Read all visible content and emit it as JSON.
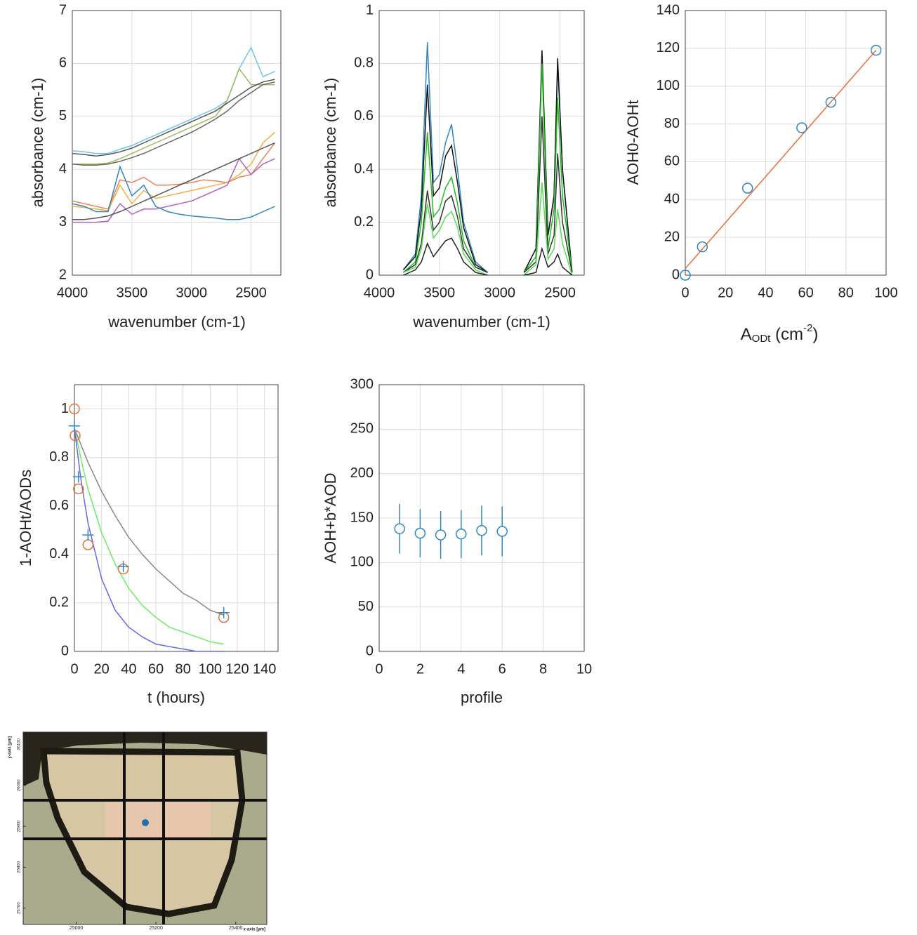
{
  "chart_data": [
    {
      "type": "line",
      "xlabel": "wavenumber (cm-1)",
      "ylabel": "absorbance (cm-1)",
      "xlim": [
        4000,
        2250
      ],
      "ylim": [
        2,
        7
      ],
      "xticks": [
        4000,
        3500,
        3000,
        2500
      ],
      "yticks": [
        2,
        3,
        4,
        5,
        6,
        7
      ],
      "grid": true,
      "x": [
        4000,
        3900,
        3800,
        3700,
        3600,
        3500,
        3400,
        3300,
        3200,
        3100,
        3000,
        2900,
        2800,
        2700,
        2600,
        2500,
        2400,
        2300
      ],
      "series": [
        {
          "color": "#6cc6e8",
          "values": [
            4.35,
            4.33,
            4.3,
            4.3,
            4.38,
            4.45,
            4.55,
            4.65,
            4.75,
            4.85,
            4.95,
            5.05,
            5.15,
            5.3,
            5.9,
            6.3,
            5.75,
            5.85
          ]
        },
        {
          "color": "#9bbb59",
          "values": [
            4.1,
            4.1,
            4.1,
            4.12,
            4.2,
            4.3,
            4.4,
            4.5,
            4.6,
            4.7,
            4.8,
            4.9,
            5.0,
            5.3,
            5.9,
            5.6,
            5.6,
            5.6
          ]
        },
        {
          "color": "#555555",
          "values": [
            4.3,
            4.28,
            4.25,
            4.28,
            4.33,
            4.4,
            4.5,
            4.6,
            4.7,
            4.8,
            4.9,
            5.0,
            5.1,
            5.25,
            5.4,
            5.55,
            5.65,
            5.7
          ]
        },
        {
          "color": "#666666",
          "values": [
            4.1,
            4.08,
            4.08,
            4.1,
            4.15,
            4.22,
            4.3,
            4.4,
            4.5,
            4.6,
            4.7,
            4.82,
            4.95,
            5.1,
            5.3,
            5.45,
            5.6,
            5.65
          ]
        },
        {
          "color": "#e8825a",
          "values": [
            3.4,
            3.35,
            3.3,
            3.25,
            3.8,
            3.75,
            3.85,
            3.7,
            3.7,
            3.72,
            3.75,
            3.8,
            3.78,
            3.75,
            3.85,
            3.9,
            4.2,
            4.5
          ]
        },
        {
          "color": "#f0b040",
          "values": [
            3.3,
            3.28,
            3.25,
            3.22,
            3.7,
            3.35,
            3.6,
            3.45,
            3.5,
            3.55,
            3.6,
            3.65,
            3.7,
            3.75,
            3.9,
            4.1,
            4.5,
            4.7
          ]
        },
        {
          "color": "#b060c0",
          "values": [
            3.0,
            3.0,
            3.0,
            3.02,
            3.35,
            3.15,
            3.25,
            3.25,
            3.3,
            3.35,
            3.4,
            3.5,
            3.6,
            3.7,
            4.2,
            3.9,
            4.1,
            4.2
          ]
        },
        {
          "color": "#2e86c1",
          "values": [
            3.35,
            3.3,
            3.2,
            3.2,
            4.05,
            3.5,
            3.7,
            3.3,
            3.2,
            3.15,
            3.12,
            3.1,
            3.08,
            3.05,
            3.05,
            3.1,
            3.2,
            3.3
          ]
        },
        {
          "color": "#555555",
          "values": [
            3.05,
            3.05,
            3.08,
            3.12,
            3.2,
            3.3,
            3.4,
            3.5,
            3.6,
            3.7,
            3.8,
            3.9,
            4.0,
            4.1,
            4.2,
            4.3,
            4.4,
            4.5
          ]
        }
      ]
    },
    {
      "type": "line",
      "xlabel": "wavenumber (cm-1)",
      "ylabel": "absorbance (cm-1)",
      "xlim": [
        4000,
        2300
      ],
      "ylim": [
        0,
        1
      ],
      "xticks": [
        4000,
        3500,
        3000,
        2500
      ],
      "yticks": [
        0,
        0.2,
        0.4,
        0.6,
        0.8,
        1
      ],
      "grid": true,
      "x": [
        3800,
        3700,
        3650,
        3600,
        3550,
        3500,
        3450,
        3400,
        3350,
        3300,
        3200,
        3100,
        3000,
        2800,
        2700,
        2650,
        2600,
        2550,
        2520,
        2480,
        2400
      ],
      "series": [
        {
          "color": "#2e86c1",
          "values": [
            0.02,
            0.08,
            0.3,
            0.88,
            0.35,
            0.38,
            0.5,
            0.57,
            0.4,
            0.2,
            0.05,
            0.01,
            null,
            0.01,
            0.1,
            0.82,
            0.15,
            0.3,
            0.8,
            0.4,
            0.01
          ]
        },
        {
          "color": "#111111",
          "values": [
            0.02,
            0.07,
            0.25,
            0.72,
            0.3,
            0.33,
            0.45,
            0.49,
            0.35,
            0.18,
            0.04,
            0.01,
            null,
            0.01,
            0.1,
            0.85,
            0.15,
            0.3,
            0.82,
            0.4,
            0.01
          ]
        },
        {
          "color": "#22bb22",
          "values": [
            0.01,
            0.05,
            0.2,
            0.54,
            0.22,
            0.25,
            0.33,
            0.37,
            0.27,
            0.13,
            0.03,
            0.01,
            null,
            0.01,
            0.07,
            0.8,
            0.1,
            0.25,
            0.67,
            0.3,
            0.01
          ]
        },
        {
          "color": "#333333",
          "values": [
            0.01,
            0.04,
            0.12,
            0.32,
            0.17,
            0.2,
            0.28,
            0.3,
            0.22,
            0.1,
            0.03,
            0.01,
            null,
            0.01,
            0.05,
            0.6,
            0.08,
            0.15,
            0.46,
            0.2,
            0.01
          ]
        },
        {
          "color": "#55dd55",
          "values": [
            0.01,
            0.03,
            0.1,
            0.27,
            0.14,
            0.17,
            0.22,
            0.24,
            0.18,
            0.08,
            0.02,
            0.0,
            null,
            0.0,
            0.04,
            0.35,
            0.06,
            0.1,
            0.25,
            0.12,
            0.0
          ]
        },
        {
          "color": "#222222",
          "values": [
            0.0,
            0.02,
            0.05,
            0.12,
            0.07,
            0.1,
            0.13,
            0.14,
            0.1,
            0.05,
            0.01,
            0.0,
            null,
            0.0,
            0.01,
            0.1,
            0.03,
            0.05,
            0.08,
            0.03,
            0.0
          ]
        }
      ]
    },
    {
      "type": "scatter",
      "xlabel_parts": [
        "A",
        "ODt",
        " (cm",
        "-2",
        ")"
      ],
      "ylabel": "AOH0-AOHt",
      "xlim": [
        0,
        100
      ],
      "ylim": [
        0,
        140
      ],
      "xticks": [
        0,
        20,
        40,
        60,
        80,
        100
      ],
      "yticks": [
        0,
        20,
        40,
        60,
        80,
        100,
        120,
        140
      ],
      "grid": true,
      "series": [
        {
          "type": "line",
          "color": "#e8703a",
          "x": [
            0,
            95
          ],
          "values": [
            3.5,
            119
          ]
        },
        {
          "type": "markers",
          "marker": "circle",
          "color": "#2e86c1",
          "x": [
            0,
            8.5,
            31,
            58,
            72.5,
            95
          ],
          "values": [
            0,
            15,
            46,
            78,
            91.5,
            119
          ]
        }
      ]
    },
    {
      "type": "scatter",
      "xlabel": "t (hours)",
      "ylabel": "1-AOHt/AODs",
      "xlim": [
        0,
        150
      ],
      "ylim": [
        0,
        1.1
      ],
      "xticks": [
        0,
        20,
        40,
        60,
        80,
        100,
        120,
        140
      ],
      "yticks": [
        0,
        0.2,
        0.4,
        0.6,
        0.8,
        1
      ],
      "grid": true,
      "series": [
        {
          "type": "line",
          "color": "#888888",
          "x": [
            0,
            5,
            10,
            20,
            30,
            40,
            50,
            60,
            70,
            80,
            90,
            100,
            110
          ],
          "values": [
            0.92,
            0.85,
            0.78,
            0.66,
            0.56,
            0.47,
            0.4,
            0.34,
            0.29,
            0.24,
            0.21,
            0.17,
            0.15
          ]
        },
        {
          "type": "line",
          "color": "#66ee66",
          "x": [
            0,
            5,
            10,
            20,
            30,
            40,
            50,
            60,
            70,
            80,
            90,
            100,
            110
          ],
          "values": [
            0.92,
            0.79,
            0.67,
            0.49,
            0.36,
            0.26,
            0.19,
            0.14,
            0.1,
            0.08,
            0.06,
            0.04,
            0.03
          ]
        },
        {
          "type": "line",
          "color": "#6666ee",
          "x": [
            0,
            5,
            10,
            20,
            30,
            40,
            50,
            60,
            70,
            80,
            90,
            100,
            110
          ],
          "values": [
            0.92,
            0.7,
            0.53,
            0.3,
            0.17,
            0.1,
            0.06,
            0.03,
            0.02,
            0.01,
            0.0,
            0.0,
            0.0
          ]
        },
        {
          "type": "markers",
          "marker": "circle",
          "color": "#e8703a",
          "x": [
            0,
            0.5,
            3,
            10,
            36,
            110
          ],
          "values": [
            1,
            0.89,
            0.67,
            0.44,
            0.34,
            0.14
          ]
        },
        {
          "type": "markers",
          "marker": "plus",
          "color": "#2e86c1",
          "x": [
            0,
            3,
            10,
            36,
            110
          ],
          "values": [
            0.93,
            0.72,
            0.48,
            0.35,
            0.16
          ]
        }
      ]
    },
    {
      "type": "errorbar",
      "xlabel": "profile",
      "ylabel": "AOH+b*AOD",
      "xlim": [
        0,
        10
      ],
      "ylim": [
        0,
        300
      ],
      "xticks": [
        0,
        2,
        4,
        6,
        8,
        10
      ],
      "yticks": [
        0,
        50,
        100,
        150,
        200,
        250,
        300
      ],
      "grid": true,
      "color": "#2e86c1",
      "x": [
        1,
        2,
        3,
        4,
        5,
        6
      ],
      "values": [
        138,
        133,
        131,
        132,
        136,
        135
      ],
      "errors": [
        28,
        27,
        27,
        27,
        28,
        28
      ]
    },
    {
      "type": "image",
      "xlabel": "x-axis [µm]",
      "ylabel": "y-axis [µm]",
      "xlim": [
        24867,
        25478
      ],
      "ylim": [
        25660,
        26130
      ],
      "xticks": [
        25000,
        25200,
        25400
      ],
      "yticks": [
        25700,
        25800,
        25900,
        26000,
        26100
      ]
    }
  ]
}
